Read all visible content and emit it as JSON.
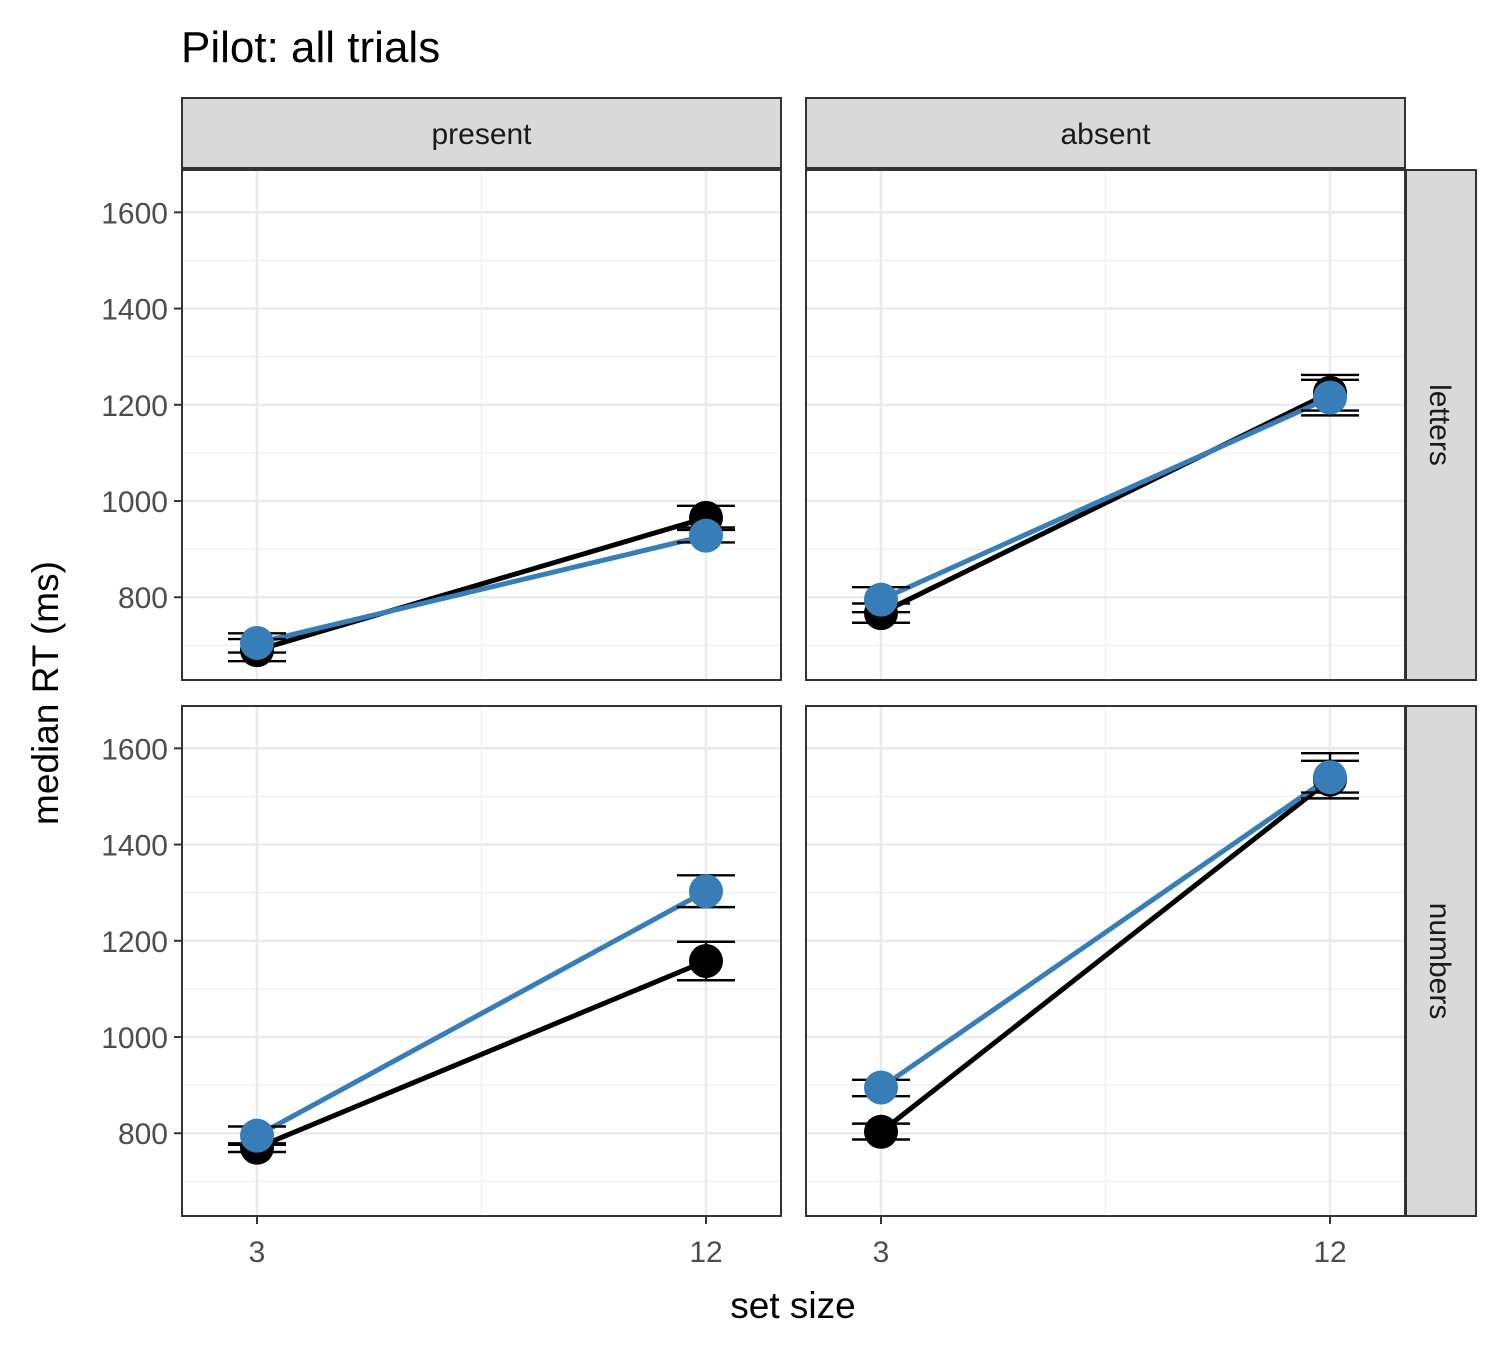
{
  "chart_data": {
    "type": "line",
    "title": "Pilot: all trials",
    "xlabel": "set size",
    "ylabel": "median RT (ms)",
    "x": [
      3,
      12
    ],
    "x_tick_labels": [
      "3",
      "12"
    ],
    "ylim": [
      628,
      1688
    ],
    "y_ticks": [
      800,
      1000,
      1200,
      1400,
      1600
    ],
    "y_tick_labels": [
      "800",
      "1000",
      "1200",
      "1400",
      "1600"
    ],
    "grid": true,
    "legend": "none",
    "colors": {
      "black_series": "#000000",
      "blue_series": "#377eb8"
    },
    "facet_columns": [
      "present",
      "absent"
    ],
    "facet_rows": [
      "letters",
      "numbers"
    ],
    "panels": [
      {
        "column": "present",
        "row": "letters",
        "series": [
          {
            "color": "#000000",
            "x": [
              3,
              12
            ],
            "y": [
              690,
              965
            ],
            "error": [
              [
                667,
                713
              ],
              [
                940,
                990
              ]
            ]
          },
          {
            "color": "#377eb8",
            "x": [
              3,
              12
            ],
            "y": [
              705,
              928
            ],
            "error": [
              [
                685,
                725
              ],
              [
                914,
                945
              ]
            ]
          }
        ]
      },
      {
        "column": "absent",
        "row": "letters",
        "series": [
          {
            "color": "#000000",
            "x": [
              3,
              12
            ],
            "y": [
              767,
              1225
            ],
            "error": [
              [
                747,
                787
              ],
              [
                1188,
                1262
              ]
            ]
          },
          {
            "color": "#377eb8",
            "x": [
              3,
              12
            ],
            "y": [
              795,
              1215
            ],
            "error": [
              [
                769,
                821
              ],
              [
                1178,
                1252
              ]
            ]
          }
        ]
      },
      {
        "column": "present",
        "row": "numbers",
        "series": [
          {
            "color": "#000000",
            "x": [
              3,
              12
            ],
            "y": [
              770,
              1158
            ],
            "error": [
              [
                761,
                779
              ],
              [
                1118,
                1198
              ]
            ]
          },
          {
            "color": "#377eb8",
            "x": [
              3,
              12
            ],
            "y": [
              795,
              1303
            ],
            "error": [
              [
                776,
                814
              ],
              [
                1270,
                1336
              ]
            ]
          }
        ]
      },
      {
        "column": "absent",
        "row": "numbers",
        "series": [
          {
            "color": "#000000",
            "x": [
              3,
              12
            ],
            "y": [
              803,
              1535
            ],
            "error": [
              [
                787,
                820
              ],
              [
                1496,
                1574
              ]
            ]
          },
          {
            "color": "#377eb8",
            "x": [
              3,
              12
            ],
            "y": [
              895,
              1540
            ],
            "error": [
              [
                877,
                911
              ],
              [
                1508,
                1590
              ]
            ]
          }
        ]
      }
    ]
  }
}
